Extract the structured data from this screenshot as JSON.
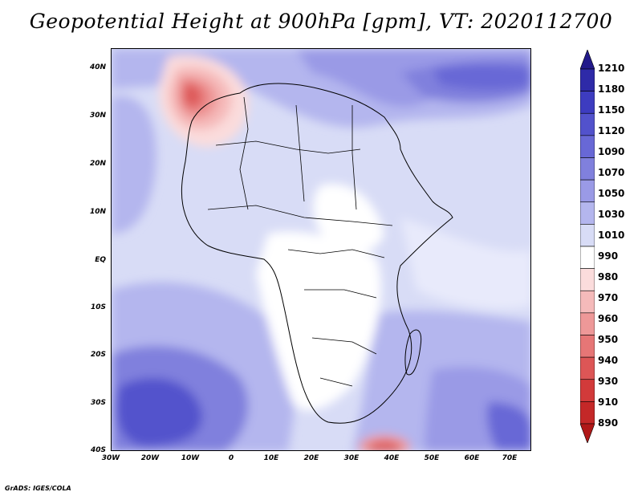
{
  "title": "Geopotential Height at 900hPa [gpm], VT: 2020112700",
  "credit": "GrADS: IGES/COLA",
  "map": {
    "lon_labels": [
      "30W",
      "20W",
      "10W",
      "0",
      "10E",
      "20E",
      "30E",
      "40E",
      "50E",
      "60E",
      "70E"
    ],
    "lat_labels": [
      "40N",
      "30N",
      "20N",
      "10N",
      "EQ",
      "10S",
      "20S",
      "30S",
      "40S"
    ]
  },
  "colorbar": {
    "levels": [
      "1210",
      "1180",
      "1150",
      "1120",
      "1090",
      "1070",
      "1050",
      "1030",
      "1010",
      "990",
      "980",
      "970",
      "960",
      "950",
      "940",
      "930",
      "910",
      "890"
    ],
    "colors": [
      "#22198a",
      "#2e2aa8",
      "#3d3cc0",
      "#5252cc",
      "#6868d6",
      "#8080dd",
      "#9a9ae6",
      "#b4b6ee",
      "#d8dcf6",
      "#ffffff",
      "#fbdcdc",
      "#f5baba",
      "#ee9898",
      "#e67676",
      "#dd5656",
      "#d23a3a",
      "#c42828",
      "#b01818"
    ]
  }
}
